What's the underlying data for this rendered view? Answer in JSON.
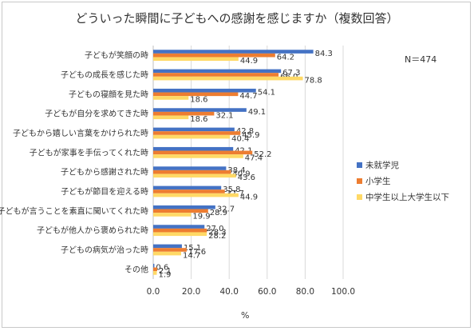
{
  "chart_data": {
    "type": "bar",
    "orientation": "horizontal",
    "title": "どういった瞬間に子どもへの感謝を感じますか（複数回答）",
    "note": "N＝474",
    "xlabel": "%",
    "xlim": [
      0,
      100
    ],
    "xticks": [
      "0.0",
      "20.0",
      "40.0",
      "60.0",
      "80.0",
      "100.0"
    ],
    "grid": true,
    "legend_position": "right",
    "categories": [
      "子どもが笑顔の時",
      "子どもの成長を感じた時",
      "子どもの寝顔を見た時",
      "子どもが自分を求めてきた時",
      "子どもから嬉しい言葉をかけられた時",
      "子どもが家事を手伝ってくれた時",
      "子どもから感謝された時",
      "子どもが節目を迎える時",
      "子どもが言うことを素直に聞いてくれた時",
      "子どもが他人から褒められた時",
      "子どもの病気が治った時",
      "その他"
    ],
    "series": [
      {
        "name": "未就学児",
        "color": "#4472c4",
        "values": [
          84.3,
          67.3,
          54.1,
          49.1,
          42.8,
          42.1,
          38.4,
          35.8,
          32.7,
          27.0,
          15.1,
          0.6
        ],
        "labels": [
          "84.3",
          "67.3",
          "54.1",
          "49.1",
          "42.8",
          "42.1",
          "38.4",
          "35.8",
          "32.7",
          "27.0",
          "15.1",
          "0.6"
        ]
      },
      {
        "name": "小学生",
        "color": "#ed7d31",
        "values": [
          64.2,
          66.0,
          44.7,
          32.1,
          45.9,
          52.2,
          40.9,
          37.7,
          28.9,
          28.3,
          17.6,
          2.1
        ],
        "labels": [
          "64.2",
          "66.0",
          "44.7",
          "32.1",
          "45.9",
          "52.2",
          "40.9",
          "37.7",
          "28.9",
          "28.3",
          "17.6",
          "2.1"
        ]
      },
      {
        "name": "中学生以上大学生以下",
        "color": "#ffd966",
        "values": [
          44.9,
          78.8,
          18.6,
          18.6,
          40.4,
          47.4,
          43.6,
          44.9,
          19.9,
          28.2,
          14.7,
          1.9
        ],
        "labels": [
          "44.9",
          "78.8",
          "18.6",
          "18.6",
          "40.4",
          "47.4",
          "43.6",
          "44.9",
          "19.9",
          "28.2",
          "14.7",
          "1.9"
        ]
      }
    ]
  }
}
